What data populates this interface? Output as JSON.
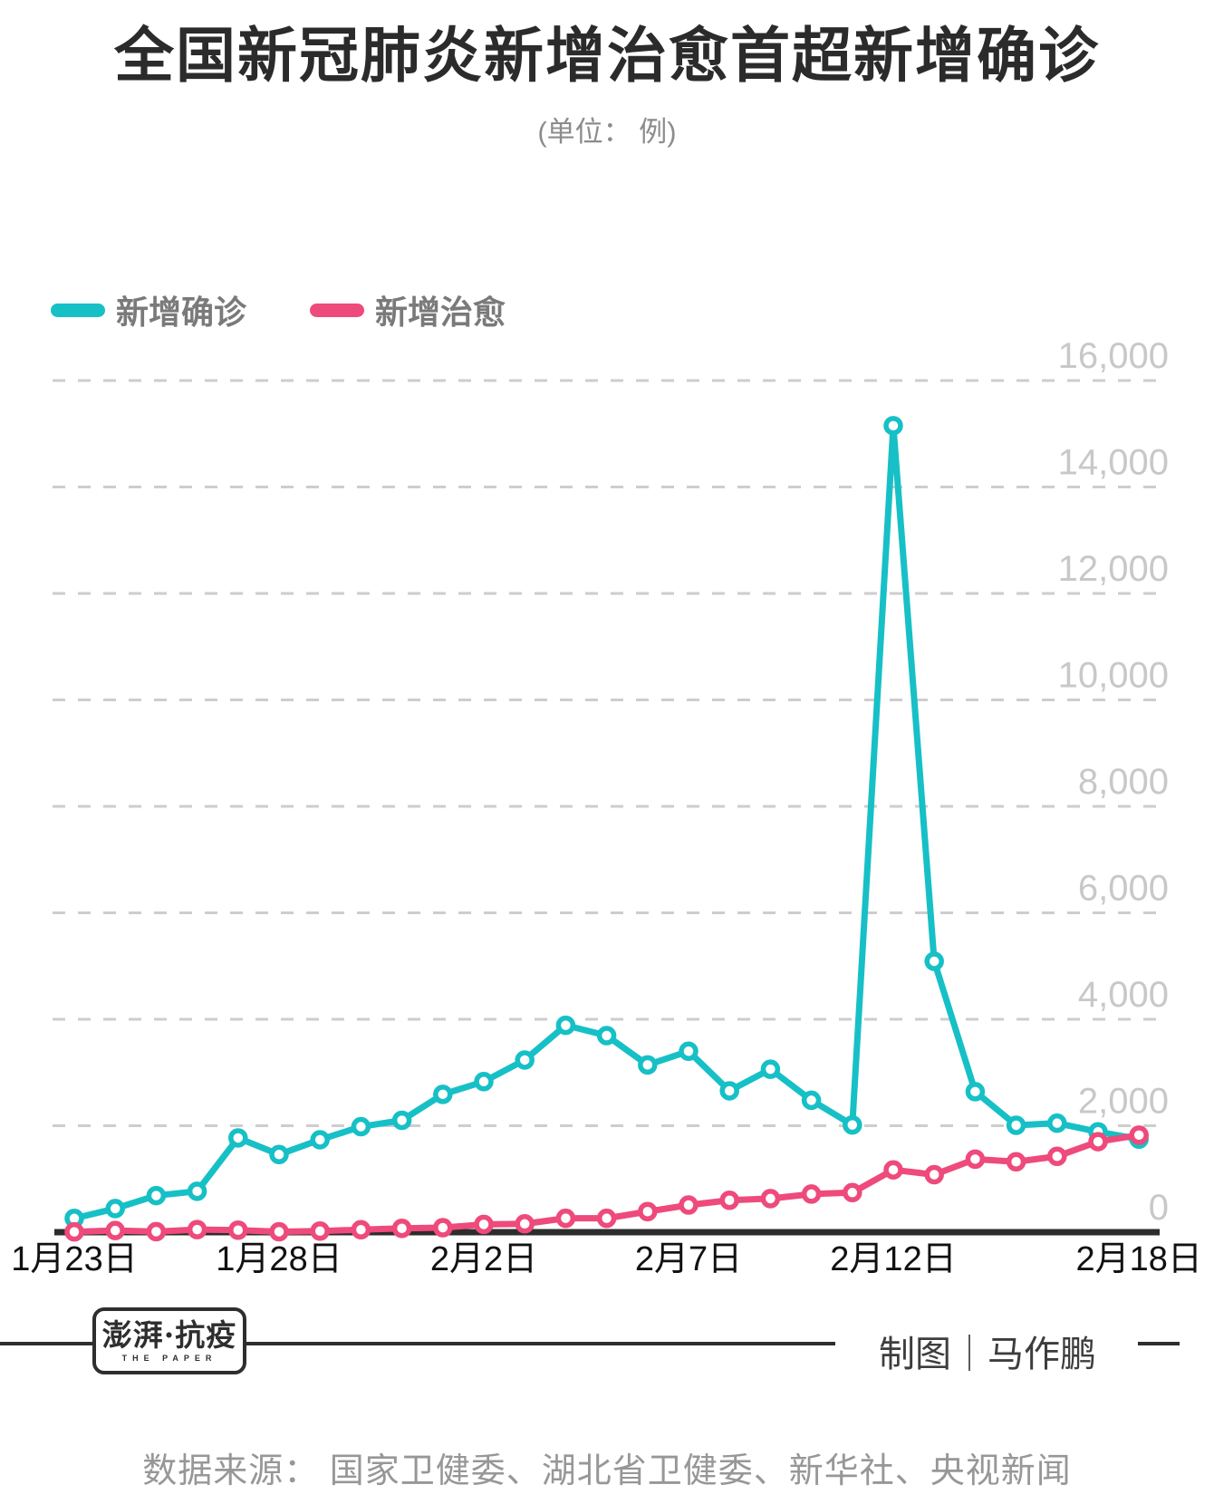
{
  "header": {
    "title": "全国新冠肺炎新增治愈首超新增确诊",
    "subtitle": "(单位： 例)"
  },
  "legend": [
    {
      "label": "新增确诊",
      "color": "#16c0c6"
    },
    {
      "label": "新增治愈",
      "color": "#ee4a7b"
    }
  ],
  "chart_data": {
    "type": "line",
    "title": "全国新冠肺炎新增治愈首超新增确诊",
    "unit_label": "(单位： 例)",
    "categories": [
      "1月23日",
      "1月24日",
      "1月25日",
      "1月26日",
      "1月27日",
      "1月28日",
      "1月29日",
      "1月30日",
      "1月31日",
      "2月1日",
      "2月2日",
      "2月3日",
      "2月4日",
      "2月5日",
      "2月6日",
      "2月7日",
      "2月8日",
      "2月9日",
      "2月10日",
      "2月11日",
      "2月12日",
      "2月13日",
      "2月14日",
      "2月15日",
      "2月16日",
      "2月17日",
      "2月18日"
    ],
    "series": [
      {
        "name": "新增确诊",
        "color": "#16c0c6",
        "values": [
          259,
          444,
          688,
          769,
          1771,
          1459,
          1737,
          1982,
          2102,
          2590,
          2829,
          3235,
          3887,
          3694,
          3143,
          3399,
          2656,
          3062,
          2478,
          2015,
          15152,
          5090,
          2641,
          2009,
          2048,
          1886,
          1749
        ]
      },
      {
        "name": "新增治愈",
        "color": "#ee4a7b",
        "values": [
          6,
          31,
          11,
          49,
          38,
          9,
          21,
          47,
          72,
          85,
          147,
          157,
          262,
          261,
          387,
          510,
          600,
          632,
          716,
          744,
          1171,
          1081,
          1373,
          1323,
          1425,
          1701,
          1824
        ]
      }
    ],
    "ylim": [
      0,
      16000
    ],
    "ytick_interval": 2000,
    "ytick_labels": [
      "0",
      "2,000",
      "4,000",
      "6,000",
      "8,000",
      "10,000",
      "12,000",
      "14,000",
      "16,000"
    ],
    "x_ticks_visible": [
      {
        "index": 0,
        "label": "1月23日"
      },
      {
        "index": 5,
        "label": "1月28日"
      },
      {
        "index": 10,
        "label": "2月2日"
      },
      {
        "index": 15,
        "label": "2月7日"
      },
      {
        "index": 20,
        "label": "2月12日"
      },
      {
        "index": 26,
        "label": "2月18日"
      }
    ],
    "grid": "horizontal-dashed",
    "grid_color": "#cdcdcd",
    "axis_color": "#2d2d2d",
    "ytick_color": "#c8c8c8",
    "xtick_color": "#111111",
    "legend_position": "top-left",
    "y_axis_side": "right"
  },
  "footer": {
    "logo_main": "澎湃·抗疫",
    "logo_sub": "THE PAPER",
    "credit": "制图｜马作鹏",
    "source": "数据来源： 国家卫健委、湖北省卫健委、新华社、央视新闻"
  }
}
